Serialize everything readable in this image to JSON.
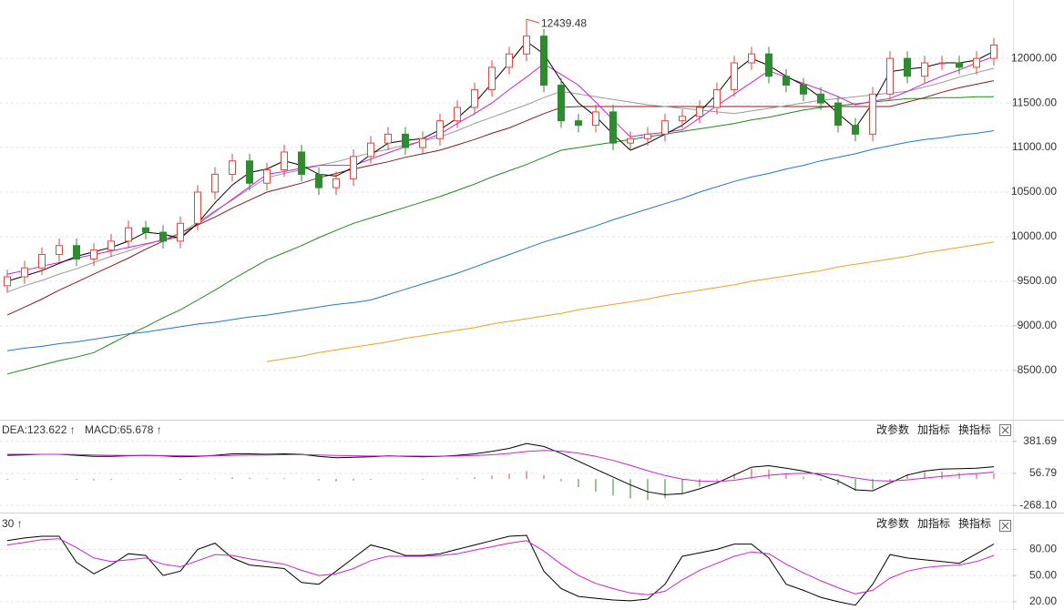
{
  "chart_data": [
    {
      "type": "candlestick",
      "categories": [
        null,
        null,
        null,
        null,
        null,
        null,
        null,
        null,
        null,
        null,
        null,
        null,
        null,
        null,
        null,
        null,
        null,
        null,
        null,
        null,
        null,
        null,
        null,
        null,
        null,
        null,
        null,
        null,
        null,
        null,
        null,
        null,
        null,
        null,
        null,
        null,
        null,
        null,
        null,
        null,
        null,
        null,
        null,
        null,
        null,
        null,
        null,
        null,
        null,
        null,
        null,
        null,
        null,
        null,
        null,
        null,
        null,
        null
      ],
      "open": [
        9450,
        9550,
        9650,
        9800,
        9900,
        9750,
        9850,
        9950,
        10100,
        10050,
        9950,
        10150,
        10500,
        10700,
        10850,
        10600,
        10750,
        10950,
        10700,
        10550,
        10650,
        10900,
        11050,
        11150,
        11000,
        11100,
        11300,
        11450,
        11650,
        11900,
        12050,
        12250,
        11700,
        11300,
        11250,
        11400,
        11050,
        11100,
        11150,
        11300,
        11350,
        11450,
        11650,
        11950,
        12050,
        11800,
        11700,
        11600,
        11500,
        11250,
        11150,
        11600,
        12000,
        11800,
        11950,
        11950,
        11900,
        12000
      ],
      "high": [
        9630,
        9730,
        9880,
        9980,
        9980,
        9930,
        10030,
        10180,
        10180,
        10130,
        10230,
        10580,
        10780,
        10930,
        10930,
        10830,
        11030,
        11030,
        10780,
        10730,
        10980,
        11130,
        11230,
        11230,
        11180,
        11380,
        11530,
        11730,
        11980,
        12130,
        12439.48,
        12330,
        11780,
        11380,
        11480,
        11480,
        11180,
        11230,
        11380,
        11430,
        11530,
        11730,
        12030,
        12130,
        12130,
        11880,
        11780,
        11680,
        11580,
        11330,
        11680,
        12080,
        12080,
        12030,
        12030,
        12030,
        12080,
        12230
      ],
      "low": [
        9370,
        9470,
        9570,
        9720,
        9670,
        9670,
        9770,
        9870,
        9970,
        9870,
        9870,
        10070,
        10420,
        10620,
        10520,
        10520,
        10670,
        10620,
        10470,
        10470,
        10570,
        10820,
        10970,
        10920,
        10920,
        11020,
        11220,
        11370,
        11570,
        11820,
        11970,
        11620,
        11220,
        11170,
        11170,
        10970,
        10970,
        11020,
        11070,
        11220,
        11270,
        11370,
        11570,
        11870,
        11720,
        11620,
        11520,
        11420,
        11170,
        11070,
        11070,
        11520,
        11720,
        11720,
        11870,
        11820,
        11820,
        11920
      ],
      "close": [
        9550,
        9650,
        9800,
        9900,
        9750,
        9850,
        9950,
        10100,
        10050,
        9950,
        10150,
        10500,
        10700,
        10850,
        10600,
        10750,
        10950,
        10700,
        10550,
        10650,
        10900,
        11050,
        11150,
        11000,
        11100,
        11300,
        11450,
        11650,
        11900,
        12050,
        12250,
        11700,
        11300,
        11250,
        11400,
        11050,
        11100,
        11150,
        11300,
        11350,
        11450,
        11650,
        11950,
        12050,
        11800,
        11700,
        11600,
        11500,
        11250,
        11150,
        11600,
        12000,
        11800,
        11950,
        11950,
        11900,
        12000,
        12150
      ],
      "up_color": "#e0463c",
      "down_color": "#2e8b2e",
      "annotation": "12439.48",
      "series": [
        {
          "color": "#000000",
          "values": [
            9500,
            9560,
            9620,
            9700,
            9780,
            9830,
            9880,
            9950,
            10050,
            10030,
            9980,
            10150,
            10380,
            10580,
            10720,
            10760,
            10850,
            10800,
            10700,
            10680,
            10780,
            10920,
            11050,
            11080,
            11100,
            11200,
            11330,
            11500,
            11720,
            11950,
            12190,
            12050,
            11750,
            11500,
            11350,
            11150,
            10970,
            11050,
            11150,
            11250,
            11400,
            11600,
            11850,
            12000,
            11920,
            11800,
            11700,
            11560,
            11380,
            11220,
            11500,
            11850,
            11880,
            11900,
            11950,
            11950,
            11980,
            12080
          ]
        },
        {
          "color": "#d020d0",
          "values": [
            9580,
            9620,
            9670,
            9710,
            9760,
            9800,
            9840,
            9880,
            9920,
            9960,
            10000,
            10140,
            10280,
            10420,
            10560,
            10700,
            10730,
            10770,
            10800,
            10800,
            10800,
            10870,
            10940,
            11010,
            11080,
            11150,
            11270,
            11380,
            11500,
            11650,
            11790,
            11940,
            11820,
            11700,
            11510,
            11310,
            11120,
            11150,
            11170,
            11200,
            11330,
            11470,
            11600,
            11730,
            11860,
            11790,
            11720,
            11650,
            11570,
            11480,
            11520,
            11550,
            11630,
            11720,
            11800,
            11870,
            11950,
            12020
          ]
        },
        {
          "color": "#999999",
          "values": [
            9380,
            9450,
            9510,
            9580,
            9640,
            9710,
            9780,
            9840,
            9910,
            9970,
            10040,
            10160,
            10290,
            10410,
            10540,
            10660,
            10710,
            10750,
            10800,
            10840,
            10890,
            10940,
            10980,
            11030,
            11070,
            11120,
            11190,
            11270,
            11340,
            11410,
            11480,
            11560,
            11630,
            11600,
            11570,
            11540,
            11510,
            11480,
            11460,
            11440,
            11420,
            11400,
            11380,
            11410,
            11440,
            11470,
            11500,
            11530,
            11550,
            11570,
            11590,
            11610,
            11630,
            11680,
            11730,
            11790,
            11840,
            11890
          ]
        },
        {
          "color": "#8b1a1a",
          "values": [
            9120,
            9210,
            9300,
            9400,
            9490,
            9580,
            9670,
            9760,
            9860,
            9950,
            10040,
            10130,
            10220,
            10320,
            10410,
            10500,
            10550,
            10600,
            10660,
            10710,
            10760,
            10800,
            10840,
            10890,
            10930,
            10970,
            11030,
            11090,
            11160,
            11220,
            11300,
            11380,
            11450,
            11460,
            11460,
            11460,
            11460,
            11460,
            11460,
            11460,
            11460,
            11460,
            11460,
            11460,
            11460,
            11460,
            11460,
            11460,
            11460,
            11460,
            11460,
            11460,
            11510,
            11560,
            11620,
            11670,
            11710,
            11750
          ]
        },
        {
          "color": "#1e8a1e",
          "values": [
            8460,
            8510,
            8560,
            8610,
            8650,
            8700,
            8800,
            8900,
            8990,
            9090,
            9180,
            9290,
            9400,
            9520,
            9630,
            9740,
            9820,
            9900,
            9990,
            10070,
            10150,
            10210,
            10270,
            10330,
            10390,
            10450,
            10520,
            10590,
            10670,
            10740,
            10810,
            10890,
            10970,
            11000,
            11030,
            11060,
            11090,
            11120,
            11150,
            11180,
            11210,
            11240,
            11270,
            11310,
            11340,
            11380,
            11420,
            11450,
            11470,
            11490,
            11510,
            11530,
            11550,
            11550,
            11560,
            11560,
            11570,
            11570
          ]
        },
        {
          "color": "#1f77d0",
          "values": [
            8720,
            8750,
            8770,
            8800,
            8820,
            8850,
            8880,
            8910,
            8930,
            8960,
            8990,
            9020,
            9040,
            9070,
            9100,
            9120,
            9150,
            9180,
            9210,
            9240,
            9260,
            9290,
            9350,
            9410,
            9470,
            9530,
            9590,
            9660,
            9730,
            9800,
            9870,
            9940,
            10000,
            10060,
            10120,
            10190,
            10250,
            10310,
            10370,
            10430,
            10500,
            10560,
            10620,
            10670,
            10710,
            10760,
            10800,
            10850,
            10890,
            10930,
            10980,
            11020,
            11060,
            11090,
            11110,
            11140,
            11160,
            11190
          ]
        },
        {
          "color": "#f0a020",
          "values": [
            null,
            null,
            null,
            null,
            null,
            null,
            null,
            null,
            null,
            null,
            null,
            null,
            null,
            null,
            null,
            8600,
            8630,
            8660,
            8700,
            8730,
            8760,
            8790,
            8820,
            8860,
            8890,
            8920,
            8950,
            8980,
            9020,
            9050,
            9080,
            9110,
            9140,
            9180,
            9210,
            9240,
            9270,
            9300,
            9340,
            9370,
            9400,
            9430,
            9460,
            9500,
            9530,
            9560,
            9590,
            9620,
            9660,
            9690,
            9720,
            9750,
            9780,
            9820,
            9850,
            9880,
            9910,
            9940
          ]
        }
      ],
      "ylim": [
        7947,
        12655
      ],
      "yticks": [
        {
          "value": 8500,
          "label": "8500.00"
        },
        {
          "value": 9000,
          "label": "9000.00"
        },
        {
          "value": 9500,
          "label": "9500.00"
        },
        {
          "value": 10000,
          "label": "10000.00"
        },
        {
          "value": 10500,
          "label": "10500.00"
        },
        {
          "value": 11000,
          "label": "11000.00"
        },
        {
          "value": 11500,
          "label": "11500.00"
        },
        {
          "value": 12000,
          "label": "12000.00"
        }
      ],
      "grid": true
    },
    {
      "type": "macd",
      "legend": [
        {
          "label": "DEA:123.622 ↑",
          "color": "#c000c0"
        },
        {
          "label": "MACD:65.678 ↑",
          "color": "#666666"
        }
      ],
      "buttons": [
        "改参数",
        "加指标",
        "换指标"
      ],
      "series": [
        {
          "color": "#000000",
          "values": [
            240,
            245,
            250,
            250,
            240,
            230,
            230,
            235,
            240,
            235,
            225,
            230,
            240,
            255,
            255,
            250,
            255,
            250,
            230,
            215,
            220,
            225,
            235,
            230,
            225,
            230,
            240,
            255,
            280,
            310,
            360,
            330,
            260,
            180,
            100,
            20,
            -60,
            -130,
            -160,
            -150,
            -100,
            -40,
            40,
            120,
            135,
            110,
            80,
            40,
            -20,
            -110,
            -120,
            -40,
            40,
            80,
            100,
            105,
            110,
            125
          ]
        },
        {
          "color": "#d020d0",
          "values": [
            250,
            250,
            250,
            250,
            248,
            244,
            240,
            238,
            238,
            237,
            235,
            234,
            235,
            239,
            242,
            244,
            246,
            247,
            244,
            238,
            235,
            233,
            233,
            233,
            232,
            231,
            233,
            237,
            246,
            259,
            279,
            289,
            283,
            262,
            230,
            188,
            138,
            84,
            35,
            -2,
            -22,
            -26,
            -13,
            14,
            38,
            52,
            58,
            55,
            40,
            10,
            -16,
            -21,
            -9,
            9,
            27,
            42,
            55,
            69
          ]
        }
      ],
      "histogram": {
        "up_color": "#e0463c",
        "down_color": "#2e8b2e",
        "values": [
          -10,
          -5,
          0,
          0,
          -8,
          -14,
          -10,
          -3,
          2,
          -2,
          -10,
          -4,
          5,
          16,
          13,
          6,
          9,
          3,
          -14,
          -23,
          -15,
          -8,
          2,
          -3,
          -7,
          -1,
          7,
          18,
          34,
          51,
          81,
          41,
          -23,
          -82,
          -130,
          -168,
          -198,
          -214,
          -195,
          -148,
          -78,
          -14,
          53,
          106,
          97,
          58,
          22,
          -15,
          -60,
          -120,
          -104,
          -19,
          49,
          71,
          73,
          63,
          55,
          56
        ]
      },
      "ylim": [
        -341,
        592
      ],
      "yticks": [
        {
          "value": -268.1,
          "label": "-268.10"
        },
        56.79,
        381.69
      ],
      "grid": true
    },
    {
      "type": "kdj",
      "legend": [
        {
          "label": "30 ↑",
          "color": "#c000c0"
        }
      ],
      "buttons": [
        "改参数",
        "加指标",
        "换指标"
      ],
      "series": [
        {
          "color": "#000000",
          "values": [
            90,
            93,
            95,
            95,
            65,
            52,
            62,
            75,
            73,
            50,
            55,
            80,
            87,
            70,
            62,
            60,
            58,
            42,
            40,
            55,
            70,
            85,
            80,
            73,
            73,
            75,
            80,
            85,
            90,
            95,
            96,
            55,
            35,
            26,
            24,
            22,
            21,
            23,
            40,
            72,
            76,
            80,
            86,
            86,
            70,
            40,
            33,
            25,
            20,
            16,
            40,
            74,
            70,
            68,
            66,
            64,
            75,
            86
          ]
        },
        {
          "color": "#d020d0",
          "values": [
            85,
            88,
            91,
            92,
            82,
            70,
            66,
            68,
            70,
            63,
            60,
            67,
            74,
            73,
            69,
            66,
            63,
            56,
            50,
            52,
            58,
            67,
            72,
            72,
            72,
            73,
            75,
            79,
            83,
            87,
            90,
            78,
            63,
            50,
            41,
            35,
            30,
            28,
            32,
            45,
            56,
            64,
            72,
            77,
            75,
            63,
            53,
            44,
            36,
            29,
            33,
            47,
            55,
            59,
            61,
            62,
            66,
            73
          ]
        }
      ],
      "ylim": [
        10.5,
        120
      ],
      "yticks": [
        {
          "value": 20,
          "label": "20.00"
        },
        {
          "value": 50,
          "label": "50.00"
        },
        {
          "value": 80,
          "label": "80.00"
        }
      ],
      "grid": true
    }
  ]
}
